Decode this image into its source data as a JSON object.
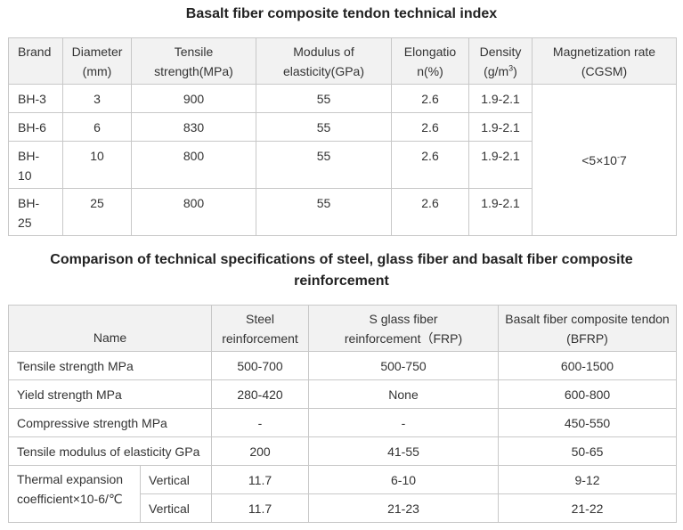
{
  "title1": "Basalt fiber composite tendon technical index",
  "table1": {
    "headers": {
      "brand": "Brand",
      "diameter": [
        "Diameter",
        "(mm)"
      ],
      "tensile": [
        "Tensile",
        "strength(MPa)"
      ],
      "modulus": [
        "Modulus of",
        "elasticity(GPa)"
      ],
      "elongation": [
        "Elongatio",
        "n(%)"
      ],
      "density_label": "Density",
      "density_unit_pre": "(g/m",
      "density_unit_sup": "3",
      "density_unit_post": ")",
      "magnetization": [
        "Magnetization rate",
        "(CGSM)"
      ]
    },
    "rows": [
      {
        "brand": "BH-3",
        "diameter": "3",
        "tensile": "900",
        "modulus": "55",
        "elongation": "2.6",
        "density": "1.9-2.1"
      },
      {
        "brand": "BH-6",
        "diameter": "6",
        "tensile": "830",
        "modulus": "55",
        "elongation": "2.6",
        "density": "1.9-2.1"
      },
      {
        "brand_lines": [
          "BH-",
          "10"
        ],
        "diameter": "10",
        "tensile": "800",
        "modulus": "55",
        "elongation": "2.6",
        "density": "1.9-2.1"
      },
      {
        "brand_lines": [
          "BH-",
          "25"
        ],
        "diameter": "25",
        "tensile": "800",
        "modulus": "55",
        "elongation": "2.6",
        "density": "1.9-2.1"
      }
    ],
    "magnetization_value_pre": "<5×10",
    "magnetization_value_sup": "-",
    "magnetization_value_post": "7"
  },
  "title2": "Comparison of technical specifications of steel, glass fiber and basalt fiber composite reinforcement",
  "table2": {
    "headers": {
      "name": "Name",
      "steel": [
        "Steel",
        "reinforcement"
      ],
      "glass": [
        "S glass fiber",
        "reinforcement（FRP)"
      ],
      "basalt": [
        "Basalt fiber composite tendon",
        "(BFRP)"
      ]
    },
    "rows": [
      {
        "name": "Tensile strength MPa",
        "steel": "500-700",
        "glass": "500-750",
        "basalt": "600-1500"
      },
      {
        "name": "Yield strength MPa",
        "steel": "280-420",
        "glass": "None",
        "basalt": "600-800"
      },
      {
        "name": "Compressive strength MPa",
        "steel": "-",
        "glass": "-",
        "basalt": "450-550"
      },
      {
        "name": "Tensile modulus of elasticity GPa",
        "steel": "200",
        "glass": "41-55",
        "basalt": "50-65"
      }
    ],
    "thermal": {
      "label_lines": [
        "Thermal expansion",
        "coefficient×10-6/℃"
      ],
      "rows": [
        {
          "direction": "Vertical",
          "steel": "11.7",
          "glass": "6-10",
          "basalt": "9-12"
        },
        {
          "direction": "Vertical",
          "steel": "11.7",
          "glass": "21-23",
          "basalt": "21-22"
        }
      ]
    }
  }
}
